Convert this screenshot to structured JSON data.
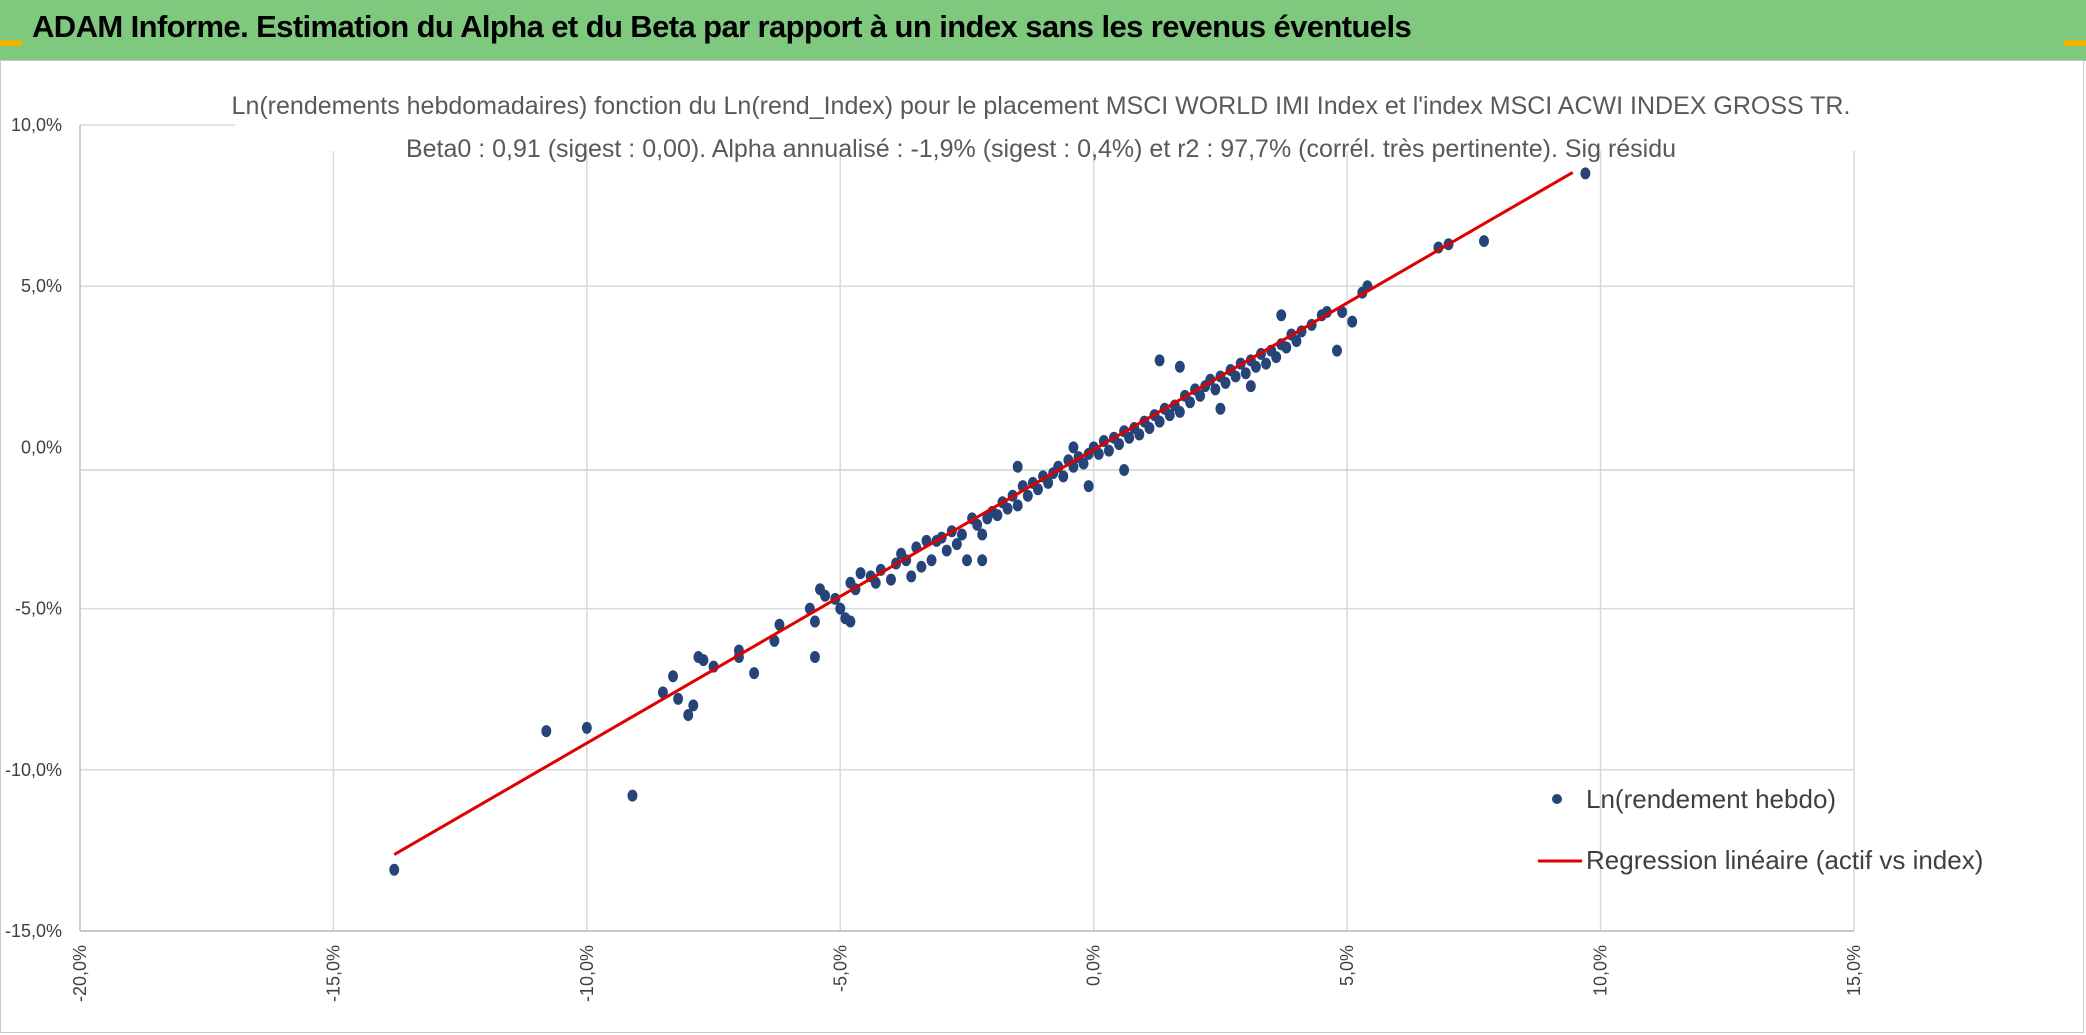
{
  "header": {
    "title": "ADAM Informe. Estimation du Alpha et du Beta par rapport à un index sans les revenus éventuels"
  },
  "chart_data": {
    "type": "scatter",
    "title": "Ln(rendements hebdomadaires) fonction du Ln(rend_Index) pour le placement MSCI WORLD IMI Index et l'index MSCI ACWI INDEX GROSS TR.",
    "subtitle": "Beta0 : 0,91 (sigest : 0,00). Alpha annualisé : -1,9% (sigest : 0,4%) et r2 : 97,7% (corrél. très pertinente). Sig résidu",
    "xlabel": "",
    "ylabel": "",
    "xlim": [
      -0.2,
      0.15
    ],
    "ylim": [
      -0.15,
      0.1
    ],
    "x_ticks": [
      -0.2,
      -0.15,
      -0.1,
      -0.05,
      0.0,
      0.05,
      0.1,
      0.15
    ],
    "x_tick_labels": [
      "-20,0%",
      "-15,0%",
      "-10,0%",
      "-5,0%",
      "0,0%",
      "5,0%",
      "10,0%",
      "15,0%"
    ],
    "y_ticks": [
      0.1,
      0.05,
      0.0,
      -0.05,
      -0.1,
      -0.15
    ],
    "y_tick_labels": [
      "10,0%",
      "5,0%",
      "0,0%",
      "-5,0%",
      "-10,0%",
      "-15,0%"
    ],
    "grid": true,
    "legend_position": "bottom-right",
    "colors": {
      "points": "#264478",
      "regression": "#e00000",
      "grid": "#d9d9d9"
    },
    "series": [
      {
        "name": "Ln(rendement hebdo)",
        "kind": "scatter",
        "points": [
          [
            -0.138,
            -0.131
          ],
          [
            -0.108,
            -0.088
          ],
          [
            -0.1,
            -0.087
          ],
          [
            -0.091,
            -0.108
          ],
          [
            -0.085,
            -0.076
          ],
          [
            -0.083,
            -0.071
          ],
          [
            -0.082,
            -0.078
          ],
          [
            -0.08,
            -0.083
          ],
          [
            -0.079,
            -0.08
          ],
          [
            -0.078,
            -0.065
          ],
          [
            -0.077,
            -0.066
          ],
          [
            -0.075,
            -0.068
          ],
          [
            -0.07,
            -0.063
          ],
          [
            -0.07,
            -0.065
          ],
          [
            -0.067,
            -0.07
          ],
          [
            -0.063,
            -0.06
          ],
          [
            -0.062,
            -0.055
          ],
          [
            -0.056,
            -0.05
          ],
          [
            -0.055,
            -0.054
          ],
          [
            -0.055,
            -0.065
          ],
          [
            -0.054,
            -0.044
          ],
          [
            -0.053,
            -0.046
          ],
          [
            -0.051,
            -0.047
          ],
          [
            -0.05,
            -0.05
          ],
          [
            -0.049,
            -0.053
          ],
          [
            -0.048,
            -0.054
          ],
          [
            -0.048,
            -0.042
          ],
          [
            -0.047,
            -0.044
          ],
          [
            -0.046,
            -0.039
          ],
          [
            -0.044,
            -0.04
          ],
          [
            -0.043,
            -0.042
          ],
          [
            -0.042,
            -0.038
          ],
          [
            -0.04,
            -0.041
          ],
          [
            -0.039,
            -0.036
          ],
          [
            -0.038,
            -0.033
          ],
          [
            -0.037,
            -0.035
          ],
          [
            -0.036,
            -0.04
          ],
          [
            -0.035,
            -0.031
          ],
          [
            -0.034,
            -0.037
          ],
          [
            -0.033,
            -0.029
          ],
          [
            -0.032,
            -0.035
          ],
          [
            -0.031,
            -0.029
          ],
          [
            -0.03,
            -0.028
          ],
          [
            -0.029,
            -0.032
          ],
          [
            -0.028,
            -0.026
          ],
          [
            -0.027,
            -0.03
          ],
          [
            -0.026,
            -0.027
          ],
          [
            -0.025,
            -0.035
          ],
          [
            -0.024,
            -0.022
          ],
          [
            -0.023,
            -0.024
          ],
          [
            -0.022,
            -0.027
          ],
          [
            -0.021,
            -0.022
          ],
          [
            -0.02,
            -0.02
          ],
          [
            -0.019,
            -0.021
          ],
          [
            -0.018,
            -0.017
          ],
          [
            -0.017,
            -0.019
          ],
          [
            -0.016,
            -0.015
          ],
          [
            -0.015,
            -0.018
          ],
          [
            -0.014,
            -0.012
          ],
          [
            -0.013,
            -0.015
          ],
          [
            -0.012,
            -0.011
          ],
          [
            -0.011,
            -0.013
          ],
          [
            -0.01,
            -0.009
          ],
          [
            -0.009,
            -0.011
          ],
          [
            -0.008,
            -0.008
          ],
          [
            -0.007,
            -0.006
          ],
          [
            -0.006,
            -0.009
          ],
          [
            -0.005,
            -0.004
          ],
          [
            -0.004,
            -0.006
          ],
          [
            -0.003,
            -0.003
          ],
          [
            -0.002,
            -0.005
          ],
          [
            -0.001,
            -0.002
          ],
          [
            0.0,
            0.0
          ],
          [
            0.001,
            -0.002
          ],
          [
            0.002,
            0.002
          ],
          [
            0.003,
            -0.001
          ],
          [
            0.004,
            0.003
          ],
          [
            0.005,
            0.001
          ],
          [
            0.006,
            0.005
          ],
          [
            0.007,
            0.003
          ],
          [
            0.008,
            0.006
          ],
          [
            0.009,
            0.004
          ],
          [
            0.01,
            0.008
          ],
          [
            0.011,
            0.006
          ],
          [
            0.012,
            0.01
          ],
          [
            0.013,
            0.008
          ],
          [
            0.014,
            0.012
          ],
          [
            0.015,
            0.01
          ],
          [
            0.016,
            0.013
          ],
          [
            0.017,
            0.011
          ],
          [
            0.018,
            0.016
          ],
          [
            0.019,
            0.014
          ],
          [
            0.02,
            0.018
          ],
          [
            0.021,
            0.016
          ],
          [
            0.022,
            0.019
          ],
          [
            0.023,
            0.021
          ],
          [
            0.024,
            0.018
          ],
          [
            0.025,
            0.022
          ],
          [
            0.026,
            0.02
          ],
          [
            0.027,
            0.024
          ],
          [
            0.028,
            0.022
          ],
          [
            0.029,
            0.026
          ],
          [
            0.03,
            0.023
          ],
          [
            0.031,
            0.027
          ],
          [
            0.032,
            0.025
          ],
          [
            0.033,
            0.029
          ],
          [
            0.034,
            0.026
          ],
          [
            0.035,
            0.03
          ],
          [
            0.036,
            0.028
          ],
          [
            0.037,
            0.032
          ],
          [
            0.038,
            0.031
          ],
          [
            0.039,
            0.035
          ],
          [
            0.04,
            0.033
          ],
          [
            0.041,
            0.036
          ],
          [
            0.043,
            0.038
          ],
          [
            0.045,
            0.041
          ],
          [
            0.046,
            0.042
          ],
          [
            0.048,
            0.03
          ],
          [
            0.049,
            0.042
          ],
          [
            0.051,
            0.039
          ],
          [
            0.053,
            0.048
          ],
          [
            0.054,
            0.05
          ],
          [
            0.068,
            0.062
          ],
          [
            0.07,
            0.063
          ],
          [
            0.077,
            0.064
          ],
          [
            0.097,
            0.085
          ],
          [
            0.013,
            0.027
          ],
          [
            -0.004,
            0.0
          ],
          [
            0.006,
            -0.007
          ],
          [
            -0.001,
            -0.012
          ],
          [
            0.025,
            0.012
          ],
          [
            -0.022,
            -0.035
          ],
          [
            0.037,
            0.041
          ],
          [
            -0.015,
            -0.006
          ],
          [
            0.031,
            0.019
          ],
          [
            0.017,
            0.025
          ]
        ]
      },
      {
        "name": "Regression linéaire (actif vs index)",
        "kind": "line",
        "x": [
          -0.138,
          0.0945
        ],
        "y": [
          -0.1263,
          0.0853
        ]
      }
    ]
  }
}
